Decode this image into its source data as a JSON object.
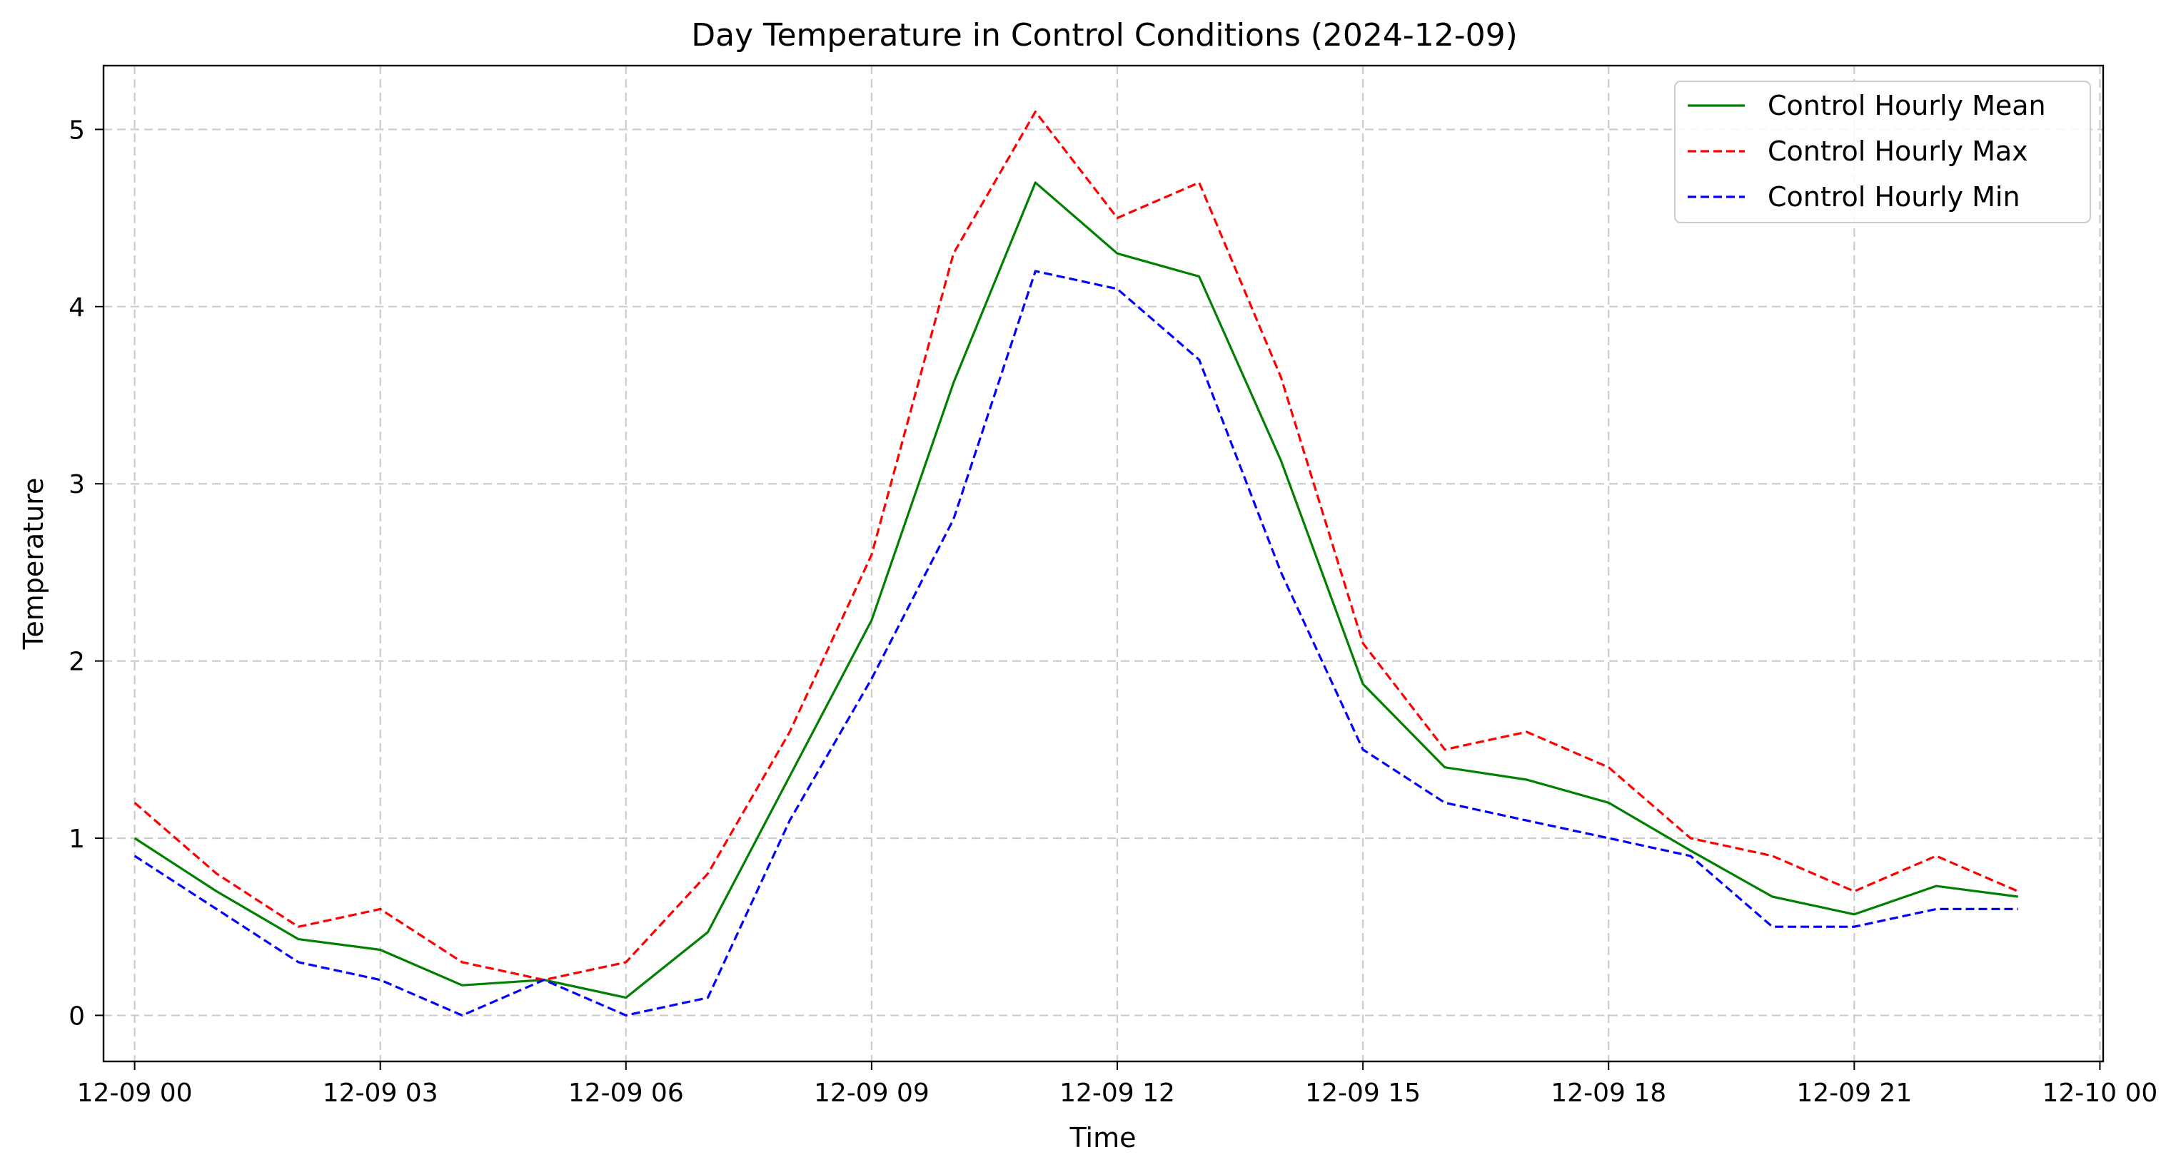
{
  "chart_data": {
    "type": "line",
    "title": "Day Temperature in Control Conditions (2024-12-09)",
    "xlabel": "Time",
    "ylabel": "Temperature",
    "x_hours": [
      0,
      1,
      2,
      3,
      4,
      5,
      6,
      7,
      8,
      9,
      10,
      11,
      12,
      13,
      14,
      15,
      16,
      17,
      18,
      19,
      20,
      21,
      22,
      23
    ],
    "xlim_hours": [
      -0.38,
      24.04
    ],
    "ylim": [
      -0.26,
      5.36
    ],
    "x_ticks": [
      {
        "hour": 0,
        "label": "12-09 00"
      },
      {
        "hour": 3,
        "label": "12-09 03"
      },
      {
        "hour": 6,
        "label": "12-09 06"
      },
      {
        "hour": 9,
        "label": "12-09 09"
      },
      {
        "hour": 12,
        "label": "12-09 12"
      },
      {
        "hour": 15,
        "label": "12-09 15"
      },
      {
        "hour": 18,
        "label": "12-09 18"
      },
      {
        "hour": 21,
        "label": "12-09 21"
      },
      {
        "hour": 24,
        "label": "12-10 00"
      }
    ],
    "y_ticks": [
      {
        "value": 0,
        "label": "0"
      },
      {
        "value": 1,
        "label": "1"
      },
      {
        "value": 2,
        "label": "2"
      },
      {
        "value": 3,
        "label": "3"
      },
      {
        "value": 4,
        "label": "4"
      },
      {
        "value": 5,
        "label": "5"
      }
    ],
    "grid": true,
    "legend_position": "top-right",
    "series": [
      {
        "name": "Control Hourly Mean",
        "color": "#008000",
        "dashed": false,
        "values": [
          1.0,
          0.7,
          0.43,
          0.37,
          0.17,
          0.2,
          0.1,
          0.47,
          1.35,
          2.23,
          3.57,
          4.7,
          4.3,
          4.17,
          3.13,
          1.87,
          1.4,
          1.33,
          1.2,
          0.93,
          0.67,
          0.57,
          0.73,
          0.67
        ]
      },
      {
        "name": "Control Hourly Max",
        "color": "#ff0000",
        "dashed": true,
        "values": [
          1.2,
          0.8,
          0.5,
          0.6,
          0.3,
          0.2,
          0.3,
          0.8,
          1.6,
          2.6,
          4.3,
          5.1,
          4.5,
          4.7,
          3.6,
          2.1,
          1.5,
          1.6,
          1.4,
          1.0,
          0.9,
          0.7,
          0.9,
          0.7
        ]
      },
      {
        "name": "Control Hourly Min",
        "color": "#0000ff",
        "dashed": true,
        "values": [
          0.9,
          0.6,
          0.3,
          0.2,
          0.0,
          0.2,
          0.0,
          0.1,
          1.1,
          1.9,
          2.8,
          4.2,
          4.1,
          3.7,
          2.5,
          1.5,
          1.2,
          1.1,
          1.0,
          0.9,
          0.5,
          0.5,
          0.6,
          0.6
        ]
      }
    ]
  }
}
